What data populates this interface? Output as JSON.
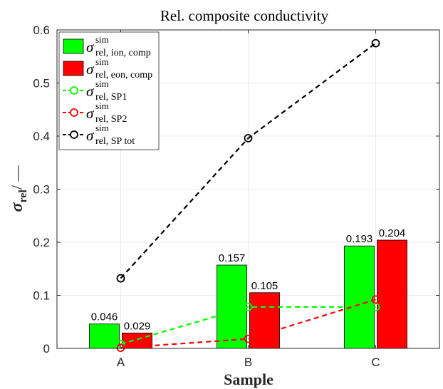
{
  "chart_data": {
    "type": "bar",
    "title": "Rel. composite conductivity",
    "xlabel": "Sample",
    "ylabel_symbol": "σ",
    "ylabel_sub": "rel",
    "ylabel_unit": "/ —",
    "categories": [
      "A",
      "B",
      "C"
    ],
    "ylim": [
      0,
      0.6
    ],
    "yticks": [
      "0",
      "0.1",
      "0.2",
      "0.3",
      "0.4",
      "0.5",
      "0.6"
    ],
    "grid": true,
    "legend_placement": "top-left",
    "bars": [
      {
        "name_sym": "σ",
        "name_sup": "sim",
        "name_sub": "rel, ion, comp",
        "color": "#00ff00",
        "values": [
          0.046,
          0.157,
          0.193
        ],
        "labels": [
          "0.046",
          "0.157",
          "0.193"
        ]
      },
      {
        "name_sym": "σ",
        "name_sup": "sim",
        "name_sub": "rel, eon, comp",
        "color": "#ff0000",
        "values": [
          0.029,
          0.105,
          0.204
        ],
        "labels": [
          "0.029",
          "0.105",
          "0.204"
        ]
      }
    ],
    "lines": [
      {
        "name_sym": "σ",
        "name_sup": "sim",
        "name_sub": "rel, SP1",
        "color": "#00ff00",
        "values": [
          0.008,
          0.078,
          0.078
        ]
      },
      {
        "name_sym": "σ",
        "name_sup": "sim",
        "name_sub": "rel, SP2",
        "color": "#ff0000",
        "values": [
          0.001,
          0.018,
          0.092
        ]
      },
      {
        "name_sym": "σ",
        "name_sup": "sim",
        "name_sub": "rel, SP tot",
        "color": "#000000",
        "values": [
          0.132,
          0.396,
          0.575
        ]
      }
    ]
  }
}
